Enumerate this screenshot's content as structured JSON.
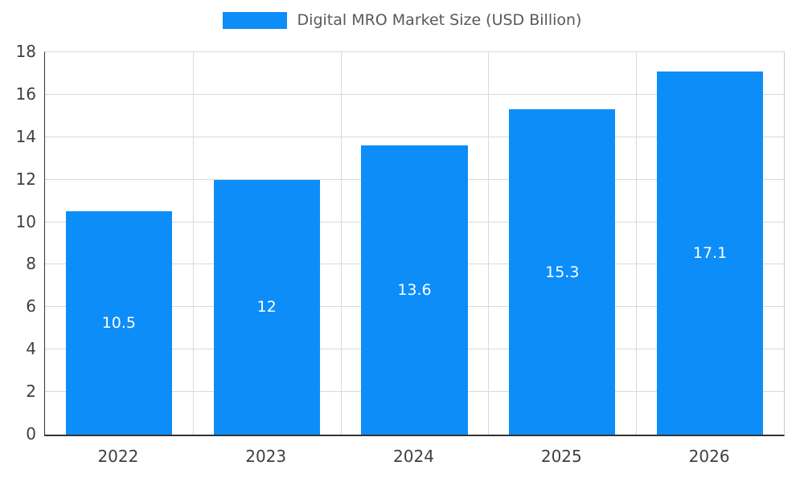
{
  "chart_data": {
    "type": "bar",
    "title": "Digital MRO Market Size (USD Billion)",
    "categories": [
      "2022",
      "2023",
      "2024",
      "2025",
      "2026"
    ],
    "values": [
      10.5,
      12,
      13.6,
      15.3,
      17.1
    ],
    "value_labels": [
      "10.5",
      "12",
      "13.6",
      "15.3",
      "17.1"
    ],
    "xlabel": "",
    "ylabel": "",
    "ylim": [
      0,
      18
    ],
    "yticks": [
      0,
      2,
      4,
      6,
      8,
      10,
      12,
      14,
      16,
      18
    ],
    "grid": true,
    "legend_position": "top-center",
    "colors": {
      "bar": "#0d8df8",
      "value_label_text": "#ffffff",
      "axis_text": "#404040",
      "title_text": "#58595b",
      "gridline": "#d9d9d9",
      "axis_line": "#333333",
      "background": "#ffffff"
    }
  }
}
